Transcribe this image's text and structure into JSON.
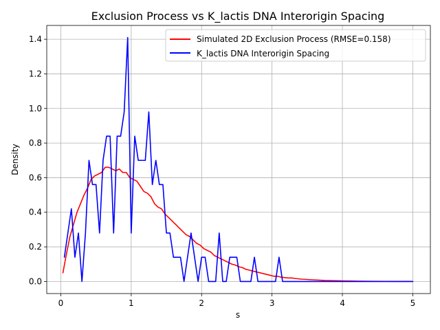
{
  "chart_data": {
    "type": "line",
    "title": "Exclusion Process vs K_lactis DNA Interorigin Spacing",
    "xlabel": "s",
    "ylabel": "Density",
    "xlim": [
      -0.2,
      5.25
    ],
    "ylim": [
      -0.07,
      1.48
    ],
    "xticks": [
      0,
      1,
      2,
      3,
      4,
      5
    ],
    "xtick_labels": [
      "0",
      "1",
      "2",
      "3",
      "4",
      "5"
    ],
    "yticks": [
      0.0,
      0.2,
      0.4,
      0.6,
      0.8,
      1.0,
      1.2,
      1.4
    ],
    "ytick_labels": [
      "0.0",
      "0.2",
      "0.4",
      "0.6",
      "0.8",
      "1.0",
      "1.2",
      "1.4"
    ],
    "grid": true,
    "legend_position": "upper right",
    "series": [
      {
        "name": "Simulated 2D Exclusion Process (RMSE=0.158)",
        "color": "#ff0000",
        "x": [
          0.03,
          0.08,
          0.13,
          0.18,
          0.23,
          0.28,
          0.33,
          0.38,
          0.43,
          0.48,
          0.53,
          0.58,
          0.63,
          0.68,
          0.73,
          0.78,
          0.83,
          0.88,
          0.93,
          0.98,
          1.03,
          1.08,
          1.13,
          1.18,
          1.23,
          1.28,
          1.33,
          1.38,
          1.43,
          1.48,
          1.53,
          1.58,
          1.63,
          1.68,
          1.73,
          1.78,
          1.83,
          1.88,
          1.93,
          1.98,
          2.03,
          2.08,
          2.13,
          2.18,
          2.23,
          2.28,
          2.33,
          2.38,
          2.43,
          2.48,
          2.53,
          2.58,
          2.63,
          2.68,
          2.73,
          2.78,
          2.83,
          2.88,
          2.93,
          2.98,
          3.03,
          3.08,
          3.13,
          3.18,
          3.23,
          3.28,
          3.33,
          3.38,
          3.43,
          3.48,
          3.55,
          3.65,
          3.75,
          3.85,
          3.95,
          4.05,
          4.2,
          4.4,
          4.6,
          4.8,
          5.0
        ],
        "values": [
          0.05,
          0.16,
          0.26,
          0.33,
          0.4,
          0.45,
          0.5,
          0.54,
          0.59,
          0.61,
          0.62,
          0.63,
          0.66,
          0.66,
          0.65,
          0.64,
          0.65,
          0.63,
          0.63,
          0.6,
          0.59,
          0.58,
          0.55,
          0.52,
          0.51,
          0.49,
          0.45,
          0.43,
          0.42,
          0.39,
          0.37,
          0.35,
          0.33,
          0.31,
          0.29,
          0.27,
          0.26,
          0.24,
          0.22,
          0.21,
          0.19,
          0.18,
          0.17,
          0.15,
          0.14,
          0.13,
          0.12,
          0.11,
          0.1,
          0.095,
          0.085,
          0.08,
          0.07,
          0.065,
          0.06,
          0.055,
          0.05,
          0.045,
          0.04,
          0.035,
          0.03,
          0.03,
          0.025,
          0.022,
          0.02,
          0.02,
          0.017,
          0.015,
          0.013,
          0.012,
          0.01,
          0.008,
          0.006,
          0.005,
          0.004,
          0.003,
          0.002,
          0.001,
          0.0005,
          0.0003,
          0.0002
        ]
      },
      {
        "name": "K_lactis DNA Interorigin Spacing",
        "color": "#0000ff",
        "x": [
          0.05,
          0.1,
          0.15,
          0.2,
          0.25,
          0.3,
          0.35,
          0.4,
          0.45,
          0.5,
          0.55,
          0.6,
          0.65,
          0.7,
          0.75,
          0.8,
          0.85,
          0.9,
          0.95,
          1.0,
          1.05,
          1.1,
          1.15,
          1.2,
          1.25,
          1.3,
          1.35,
          1.4,
          1.45,
          1.5,
          1.55,
          1.6,
          1.65,
          1.7,
          1.75,
          1.8,
          1.85,
          1.9,
          1.95,
          2.0,
          2.05,
          2.1,
          2.15,
          2.2,
          2.25,
          2.3,
          2.35,
          2.4,
          2.45,
          2.5,
          2.55,
          2.6,
          2.65,
          2.7,
          2.75,
          2.8,
          2.85,
          2.9,
          2.95,
          3.0,
          3.05,
          3.1,
          3.15,
          3.2,
          3.4,
          3.6,
          3.8,
          4.0,
          4.5,
          5.0
        ],
        "values": [
          0.14,
          0.28,
          0.42,
          0.14,
          0.28,
          0.0,
          0.28,
          0.7,
          0.56,
          0.56,
          0.28,
          0.7,
          0.84,
          0.84,
          0.28,
          0.84,
          0.84,
          0.98,
          1.41,
          0.28,
          0.84,
          0.7,
          0.7,
          0.7,
          0.98,
          0.56,
          0.7,
          0.56,
          0.56,
          0.28,
          0.28,
          0.14,
          0.14,
          0.14,
          0.0,
          0.14,
          0.28,
          0.14,
          0.0,
          0.14,
          0.14,
          0.0,
          0.0,
          0.0,
          0.28,
          0.0,
          0.0,
          0.14,
          0.14,
          0.14,
          0.0,
          0.0,
          0.0,
          0.0,
          0.14,
          0.0,
          0.0,
          0.0,
          0.0,
          0.0,
          0.0,
          0.14,
          0.0,
          0.0,
          0.0,
          0.0,
          0.0,
          0.0,
          0.0,
          0.0
        ]
      }
    ]
  }
}
